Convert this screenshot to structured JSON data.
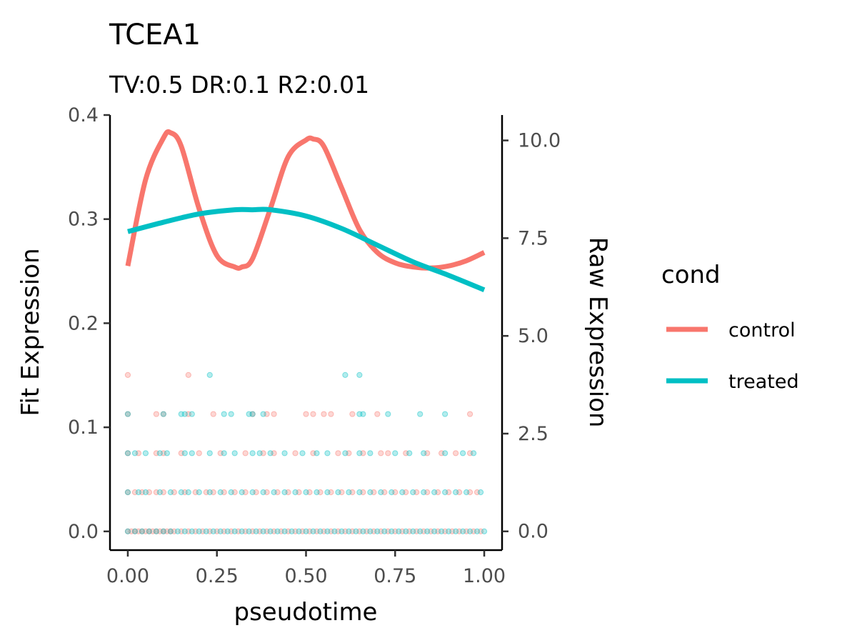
{
  "chart_data": {
    "type": "line",
    "title": "TCEA1",
    "subtitle": "TV:0.5 DR:0.1 R2:0.01",
    "xlabel": "pseudotime",
    "ylabel": "Fit Expression",
    "y2label": "Raw Expression",
    "xlim": [
      -0.05,
      1.05
    ],
    "ylim": [
      -0.018,
      0.4
    ],
    "y2lim": [
      -0.48,
      10.65
    ],
    "x_ticks": [
      0.0,
      0.25,
      0.5,
      0.75,
      1.0
    ],
    "x_tick_labels": [
      "0.00",
      "0.25",
      "0.50",
      "0.75",
      "1.00"
    ],
    "y_ticks": [
      0.0,
      0.1,
      0.2,
      0.3,
      0.4
    ],
    "y_tick_labels": [
      "0.0",
      "0.1",
      "0.2",
      "0.3",
      "0.4"
    ],
    "y2_ticks": [
      0.0,
      2.5,
      5.0,
      7.5,
      10.0
    ],
    "y2_tick_labels": [
      "0.0",
      "2.5",
      "5.0",
      "7.5",
      "10.0"
    ],
    "grid": false,
    "legend": {
      "title": "cond",
      "placement": "right"
    },
    "series": [
      {
        "name": "control",
        "color": "#F8766D",
        "axis": "left",
        "x": [
          0.0,
          0.05,
          0.1,
          0.12,
          0.15,
          0.2,
          0.25,
          0.3,
          0.32,
          0.35,
          0.4,
          0.45,
          0.5,
          0.52,
          0.55,
          0.6,
          0.65,
          0.7,
          0.75,
          0.8,
          0.85,
          0.9,
          0.95,
          1.0
        ],
        "y": [
          0.255,
          0.338,
          0.378,
          0.383,
          0.37,
          0.31,
          0.265,
          0.254,
          0.254,
          0.262,
          0.31,
          0.36,
          0.376,
          0.377,
          0.37,
          0.33,
          0.29,
          0.268,
          0.258,
          0.254,
          0.253,
          0.255,
          0.26,
          0.268
        ]
      },
      {
        "name": "treated",
        "color": "#00BFC4",
        "axis": "left",
        "x": [
          0.0,
          0.1,
          0.2,
          0.3,
          0.35,
          0.4,
          0.5,
          0.6,
          0.7,
          0.8,
          0.9,
          1.0
        ],
        "y": [
          0.288,
          0.297,
          0.305,
          0.309,
          0.309,
          0.309,
          0.303,
          0.291,
          0.275,
          0.259,
          0.246,
          0.232
        ]
      }
    ],
    "raw_points": {
      "axis": "right",
      "levels": [
        {
          "raw": 0,
          "control_x": [
            0.0,
            0.01,
            0.02,
            0.03,
            0.04,
            0.05,
            0.06,
            0.07,
            0.08,
            0.09,
            0.1,
            0.11,
            0.12,
            0.13,
            0.15,
            0.17,
            0.19,
            0.21,
            0.23,
            0.25,
            0.27,
            0.29,
            0.31,
            0.33,
            0.35,
            0.37,
            0.39,
            0.41,
            0.43,
            0.45,
            0.47,
            0.49,
            0.51,
            0.53,
            0.55,
            0.57,
            0.59,
            0.61,
            0.63,
            0.65,
            0.67,
            0.69,
            0.71,
            0.73,
            0.75,
            0.77,
            0.79,
            0.81,
            0.83,
            0.85,
            0.87,
            0.89,
            0.91,
            0.93,
            0.95,
            0.97,
            0.99
          ],
          "treated_x": [
            0.0,
            0.02,
            0.04,
            0.06,
            0.08,
            0.1,
            0.12,
            0.14,
            0.16,
            0.18,
            0.2,
            0.22,
            0.24,
            0.26,
            0.28,
            0.3,
            0.32,
            0.34,
            0.36,
            0.38,
            0.4,
            0.42,
            0.44,
            0.46,
            0.48,
            0.5,
            0.52,
            0.54,
            0.56,
            0.58,
            0.6,
            0.62,
            0.64,
            0.66,
            0.68,
            0.7,
            0.72,
            0.74,
            0.76,
            0.78,
            0.8,
            0.82,
            0.84,
            0.86,
            0.88,
            0.9,
            0.92,
            0.94,
            0.96,
            0.98,
            1.0
          ]
        },
        {
          "raw": 1,
          "control_x": [
            0.0,
            0.02,
            0.04,
            0.06,
            0.08,
            0.1,
            0.13,
            0.16,
            0.19,
            0.22,
            0.24,
            0.27,
            0.3,
            0.33,
            0.36,
            0.39,
            0.42,
            0.45,
            0.48,
            0.51,
            0.54,
            0.57,
            0.6,
            0.63,
            0.66,
            0.69,
            0.72,
            0.75,
            0.78,
            0.81,
            0.84,
            0.87,
            0.9,
            0.93,
            0.96,
            0.98
          ],
          "treated_x": [
            0.0,
            0.03,
            0.05,
            0.09,
            0.12,
            0.15,
            0.17,
            0.2,
            0.23,
            0.26,
            0.29,
            0.32,
            0.35,
            0.38,
            0.41,
            0.44,
            0.47,
            0.5,
            0.53,
            0.56,
            0.59,
            0.62,
            0.65,
            0.68,
            0.71,
            0.74,
            0.77,
            0.8,
            0.83,
            0.86,
            0.89,
            0.92,
            0.95,
            0.99
          ]
        },
        {
          "raw": 2,
          "control_x": [
            0.0,
            0.03,
            0.08,
            0.1,
            0.15,
            0.2,
            0.26,
            0.33,
            0.38,
            0.41,
            0.47,
            0.52,
            0.59,
            0.62,
            0.66,
            0.71,
            0.73,
            0.78,
            0.84,
            0.88,
            0.92,
            0.96
          ],
          "treated_x": [
            0.0,
            0.02,
            0.05,
            0.09,
            0.11,
            0.16,
            0.18,
            0.23,
            0.27,
            0.3,
            0.35,
            0.37,
            0.4,
            0.44,
            0.49,
            0.53,
            0.56,
            0.61,
            0.65,
            0.68,
            0.75,
            0.79,
            0.83,
            0.89,
            0.94,
            0.97
          ]
        },
        {
          "raw": 3,
          "control_x": [
            0.0,
            0.08,
            0.1,
            0.17,
            0.24,
            0.35,
            0.39,
            0.41,
            0.5,
            0.52,
            0.55,
            0.57,
            0.63,
            0.7,
            0.96
          ],
          "treated_x": [
            0.0,
            0.1,
            0.15,
            0.16,
            0.18,
            0.27,
            0.29,
            0.34,
            0.35,
            0.38,
            0.65,
            0.66,
            0.73,
            0.82,
            0.89
          ]
        },
        {
          "raw": 4,
          "control_x": [
            0.0,
            0.17
          ],
          "treated_x": [
            0.23,
            0.61,
            0.65
          ]
        }
      ]
    }
  }
}
